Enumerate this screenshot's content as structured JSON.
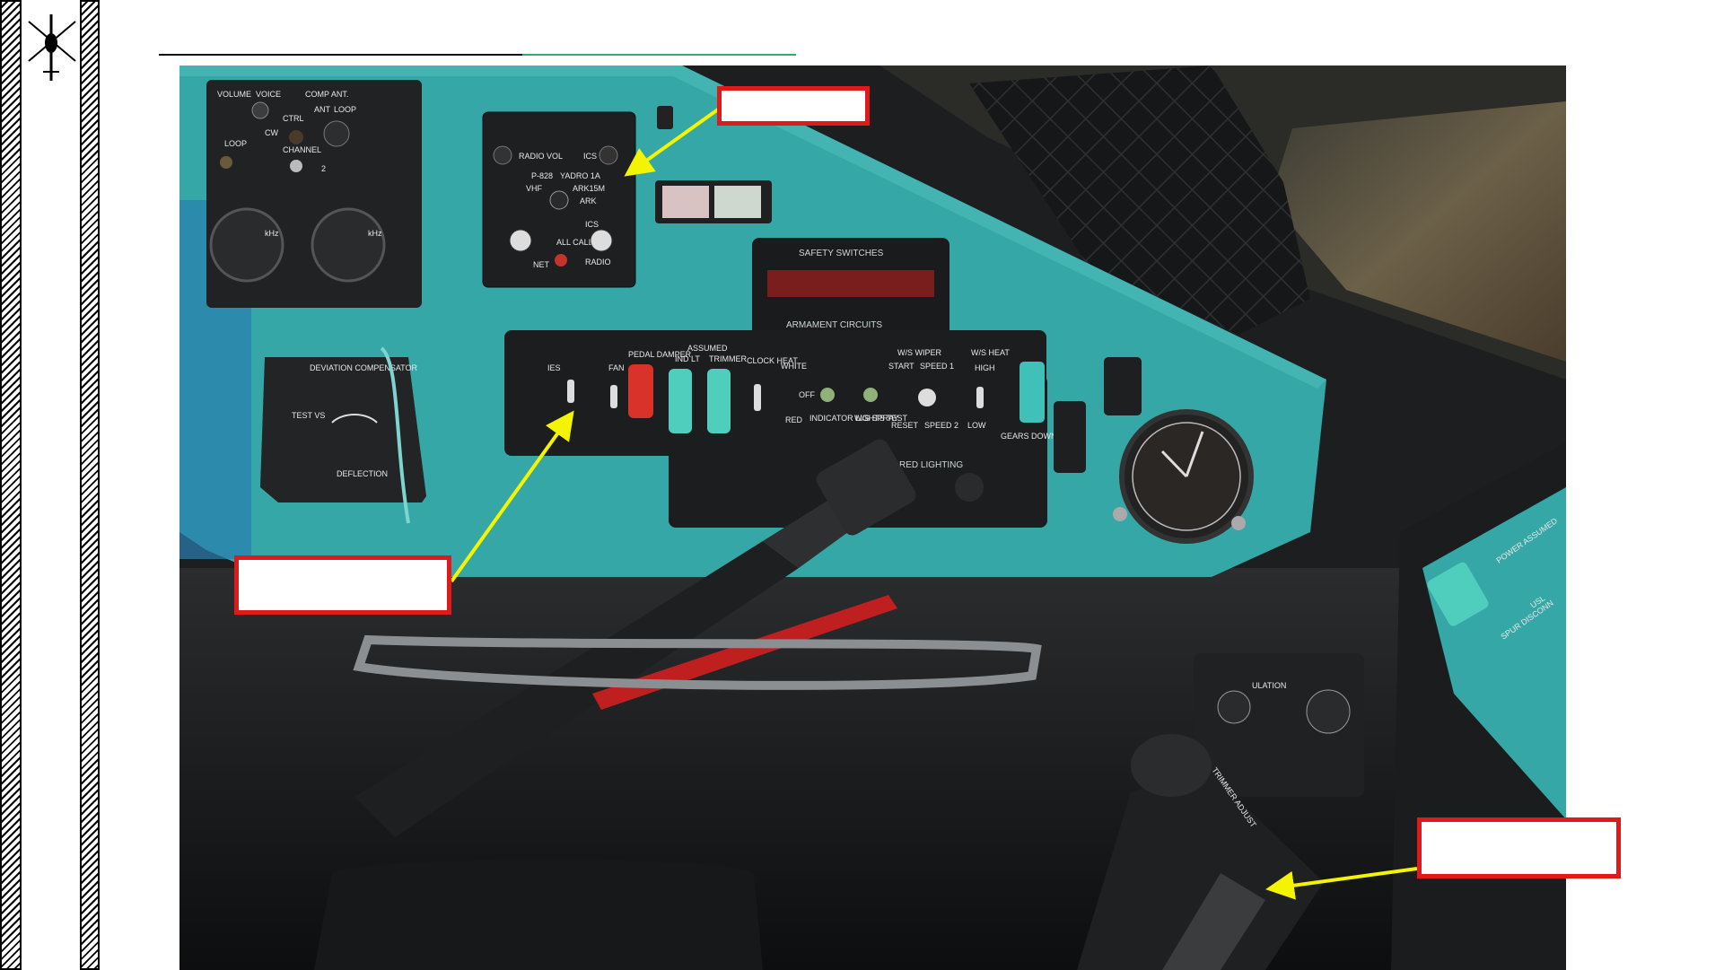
{
  "panel_labels": {
    "intercom": {
      "volume": "VOLUME",
      "voice": "VOICE",
      "comp_ant": "COMP ANT.",
      "ctrl": "CTRL",
      "ant": "ANT",
      "loop": "LOOP",
      "cw": "CW",
      "loop2": "LOOP",
      "channel": "CHANNEL",
      "ch2": "2",
      "khz_left": "kHz",
      "khz_right": "kHz"
    },
    "radio_box": {
      "radio_vol": "RADIO VOL",
      "ics_vol": "ICS VOL",
      "p828": "P-828",
      "yadro": "YADRO 1A",
      "arc15m": "ARK15M",
      "vhf": "VHF",
      "ark": "ARK",
      "net": "NET",
      "all_call": "ALL CALL",
      "ics": "ICS",
      "radio": "RADIO"
    },
    "safety_switches": "SAFETY SWITCHES",
    "armament_circuits": "ARMAMENT CIRCUITS",
    "deviation_compensator": "DEVIATION COMPENSATOR",
    "test_vs": "TEST VS",
    "deflection": "DEFLECTION",
    "main_panel": {
      "ies": "IES",
      "fan": "FAN",
      "pedal_damper": "PEDAL DAMPER",
      "assumed": "ASSUMED",
      "ind_lt": "IND LT",
      "trimmer": "TRIMMER",
      "clock_heat": "CLOCK HEAT",
      "white": "WHITE",
      "off": "OFF",
      "red": "RED",
      "indicator_lights_test": "INDICATOR LIGHTS TEST",
      "ws_wiper": "W/S WIPER",
      "start": "START",
      "speed1": "SPEED 1",
      "reset": "RESET",
      "speed2": "SPEED 2",
      "ws_spray": "W/S SPRAY",
      "ws_heat": "W/S HEAT",
      "high": "HIGH",
      "low": "LOW",
      "gears_down": "GEARS DOWN",
      "red_lighting": "RED LIGHTING"
    },
    "right_console": {
      "trimmer_adjust": "TRIMMER ADJUST",
      "ulation": "ULATION",
      "spur_disconn": "SPUR DISCONN",
      "power_assumed": "POWER ASSUMED",
      "usl": "USL"
    }
  },
  "callouts": {
    "top": "",
    "left": "",
    "right": ""
  },
  "colors": {
    "panel_teal": "#35a7a6",
    "callout_border": "#e01a1a",
    "arrow_yellow": "#f4f400",
    "title_rule_dark": "#111111",
    "title_rule_green": "#2fae6a"
  }
}
